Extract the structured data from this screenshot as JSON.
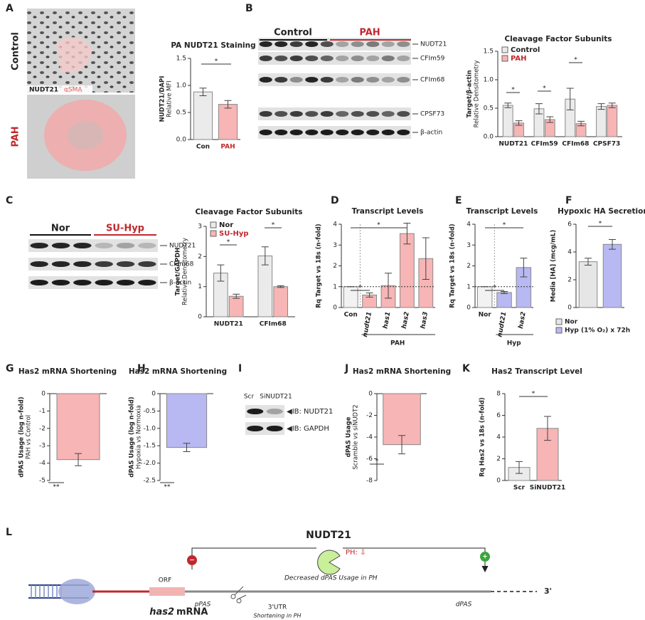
{
  "panel_letters": [
    "A",
    "B",
    "C",
    "D",
    "E",
    "F",
    "G",
    "H",
    "I",
    "J",
    "K",
    "L"
  ],
  "panel_a_images": {
    "top_label": "Control",
    "bottom_label": "PAH",
    "stain_1": "NUDT21",
    "stain_2": "αSMA"
  },
  "blot_b": {
    "groups": [
      "Control",
      "PAH"
    ],
    "bands": [
      "NUDT21",
      "CFIm59",
      "CFIm68",
      "CPSF73",
      "β-actin"
    ]
  },
  "blot_c": {
    "groups": [
      "Nor",
      "SU-Hyp"
    ],
    "bands": [
      "NUDT21",
      "CFIm68",
      "β-actin"
    ]
  },
  "blot_i": {
    "lanes": [
      "Scr",
      "SiNUDT21"
    ],
    "bands": [
      "◀IB: NUDT21",
      "◀IB: GAPDH"
    ]
  },
  "diagram": {
    "factor": "NUDT21",
    "ph": "PH: ⇩",
    "effect": "Decreased dPAS Usage in PH",
    "orf": "ORF",
    "gene": "has2",
    "gene_suffix": "mRNA",
    "ppas": "pPAS",
    "dpas": "dPAS",
    "utr": "3'UTR",
    "utr_note": "Shortening in PH",
    "end": "3'",
    "base": "A",
    "minus": "−",
    "plus": "+"
  },
  "chart_data": [
    {
      "type": "bar",
      "title": "PA NUDT21 Staining",
      "ylabel": "NUDT21/DAPI",
      "ylabel2": "Relative MFI",
      "categories": [
        "Con",
        "PAH"
      ],
      "label_colors": [
        "#222",
        "#c0282d"
      ],
      "values": [
        0.88,
        0.65
      ],
      "errors": [
        0.07,
        0.07
      ],
      "colors": [
        "#ebebeb",
        "#f7b5b5"
      ],
      "ylim": [
        0,
        1.5
      ],
      "yticks": [
        {
          "value": 0,
          "label": "0.0"
        },
        0.5,
        {
          "value": 1,
          "label": "1.0"
        },
        1.5
      ],
      "annotations": [
        "*"
      ]
    },
    {
      "type": "bar",
      "title": "Cleavage Factor Subunits",
      "ylabel": "Target/β-actin",
      "ylabel2": "Relative Densitometry",
      "categories": [
        "NUDT21",
        "CFIm59",
        "CFIm68",
        "CPSF73"
      ],
      "series": [
        {
          "name": "Control",
          "color": "#ebebeb",
          "values": [
            0.55,
            0.49,
            0.66,
            0.53
          ],
          "errors": [
            0.04,
            0.09,
            0.19,
            0.05
          ]
        },
        {
          "name": "PAH",
          "color": "#f7b5b5",
          "values": [
            0.24,
            0.3,
            0.23,
            0.55
          ],
          "errors": [
            0.04,
            0.05,
            0.04,
            0.04
          ]
        }
      ],
      "ylim": [
        0,
        1.5
      ],
      "yticks": [
        {
          "value": 0,
          "label": "0.0"
        },
        0.5,
        {
          "value": 1,
          "label": "1.0"
        },
        1.5
      ],
      "legend": "top-left",
      "annotations": [
        "*",
        "*",
        "*"
      ]
    },
    {
      "type": "bar",
      "title": "Cleavage Factor Subunits",
      "ylabel": "Target/GAPDH",
      "ylabel2": "Relative Densitometry",
      "categories": [
        "NUDT21",
        "CFIm68"
      ],
      "series": [
        {
          "name": "Nor",
          "color": "#ebebeb",
          "values": [
            1.45,
            2.02
          ],
          "errors": [
            0.27,
            0.3
          ]
        },
        {
          "name": "SU-Hyp",
          "color": "#f7b5b5",
          "values": [
            0.68,
            1.0
          ],
          "errors": [
            0.07,
            0.03
          ]
        }
      ],
      "ylim": [
        0,
        3
      ],
      "yticks": [
        0,
        1,
        2,
        3
      ],
      "legend": "top-left",
      "annotations": [
        "*",
        "*"
      ]
    },
    {
      "type": "bar",
      "title": "Transcript Levels",
      "ylabel": "Rq Target vs 18s (n-fold)",
      "categories": [
        "Con",
        "nudt21",
        "has1",
        "has2",
        "has3"
      ],
      "values": [
        1,
        0.6,
        1.05,
        3.55,
        2.35
      ],
      "errors": [
        0,
        0.1,
        0.6,
        0.5,
        1.0
      ],
      "colors": [
        "#f2f2f2",
        "#f7b5b5",
        "#f7b5b5",
        "#f7b5b5",
        "#f7b5b5"
      ],
      "ylim": [
        0,
        4
      ],
      "yticks": [
        0,
        1,
        2,
        3,
        4
      ],
      "reference_line": 1,
      "group_label": "PAH",
      "annotations": [
        "*",
        "*"
      ]
    },
    {
      "type": "bar",
      "title": "Transcript Levels",
      "ylabel": "Rq Target vs 18s (n-fold)",
      "categories": [
        "Nor",
        "nudt21",
        "has2"
      ],
      "values": [
        1,
        0.72,
        1.92
      ],
      "errors": [
        0,
        0.05,
        0.45
      ],
      "colors": [
        "#f2f2f2",
        "#b8b8f2",
        "#b8b8f2"
      ],
      "ylim": [
        0,
        4
      ],
      "yticks": [
        0,
        1,
        2,
        3,
        4
      ],
      "reference_line": 1,
      "group_label": "Hyp",
      "annotations": [
        "*",
        "*"
      ]
    },
    {
      "type": "bar",
      "title": "Hypoxic HA Secretion",
      "ylabel": "Media [HA] (mcg/mL)",
      "categories": [
        "Nor",
        "Hyp (1% O₂) x 72h"
      ],
      "values": [
        3.3,
        4.55
      ],
      "errors": [
        0.25,
        0.35
      ],
      "colors": [
        "#e6e6e6",
        "#b8b8f2"
      ],
      "ylim": [
        0,
        6
      ],
      "yticks": [
        0,
        2,
        4,
        6
      ],
      "legend": "bottom",
      "annotations": [
        "*"
      ]
    },
    {
      "type": "bar",
      "title": "Has2 mRNA Shortening",
      "ylabel": "dPAS Usage (log n-fold)",
      "ylabel2": "PAH vs Control",
      "categories": [
        null
      ],
      "values": [
        -3.8
      ],
      "errors": [
        0.35
      ],
      "colors": [
        "#f7b5b5"
      ],
      "ylim": [
        -5,
        0
      ],
      "yticks": [
        0,
        -1,
        -2,
        -3,
        -4,
        -5
      ],
      "annotations": [
        "**"
      ]
    },
    {
      "type": "bar",
      "title": "Has2 mRNA Shortening",
      "ylabel": "dPAS Usage (log n-fold)",
      "ylabel2": "Hypoxia vs Normoxia",
      "categories": [
        null
      ],
      "values": [
        -1.55
      ],
      "errors": [
        0.12
      ],
      "colors": [
        "#b8b8f2"
      ],
      "ylim": [
        -2.5,
        0
      ],
      "yticks": [
        0,
        -0.5,
        {
          "value": -1,
          "label": "-1.0"
        },
        -1.5,
        {
          "value": -2,
          "label": "-2.0"
        },
        -2.5
      ],
      "annotations": [
        "**"
      ]
    },
    {
      "type": "bar",
      "title": "Has2 mRNA Shortening",
      "ylabel": "dPAS Usage",
      "ylabel2": "Scramble vs siNUDT2",
      "categories": [
        null
      ],
      "values": [
        -4.7
      ],
      "errors": [
        0.85
      ],
      "colors": [
        "#f7b5b5"
      ],
      "ylim": [
        -8,
        0
      ],
      "yticks": [
        0,
        -2,
        -4,
        -6,
        -8
      ],
      "annotations": [
        "*"
      ]
    },
    {
      "type": "bar",
      "title": "Has2 Transcript Level",
      "ylabel": "Rq Has2 vs 18s (n-fold)",
      "categories": [
        "Scr",
        "SiNUDT21"
      ],
      "values": [
        1.2,
        4.8
      ],
      "errors": [
        0.55,
        1.1
      ],
      "colors": [
        "#ebebeb",
        "#f7b5b5"
      ],
      "ylim": [
        0,
        8
      ],
      "yticks": [
        0,
        2,
        4,
        6,
        8
      ],
      "annotations": [
        "*"
      ]
    }
  ]
}
